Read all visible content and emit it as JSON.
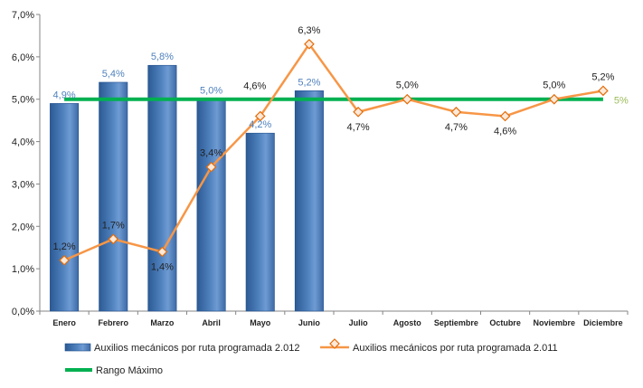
{
  "chart_data": {
    "type": "bar",
    "categories": [
      "Enero",
      "Febrero",
      "Marzo",
      "Abril",
      "Mayo",
      "Junio",
      "Julio",
      "Agosto",
      "Septiembre",
      "Octubre",
      "Noviembre",
      "Diciembre"
    ],
    "y_ticks": [
      "0,0%",
      "1,0%",
      "2,0%",
      "3,0%",
      "4,0%",
      "5,0%",
      "6,0%",
      "7,0%"
    ],
    "ylim": [
      0,
      7
    ],
    "series": [
      {
        "name": "Auxilios mecánicos por ruta programada 2.012",
        "kind": "bar",
        "color": "#4f81bd",
        "values": [
          4.9,
          5.4,
          5.8,
          5.0,
          4.2,
          5.2,
          null,
          null,
          null,
          null,
          null,
          null
        ],
        "labels": [
          "4,9%",
          "5,4%",
          "5,8%",
          "5,0%",
          "4,2%",
          "5,2%",
          "",
          "",
          "",
          "",
          "",
          ""
        ]
      },
      {
        "name": "Auxilios mecánicos por ruta programada 2.011",
        "kind": "line",
        "color": "#f79646",
        "values": [
          1.2,
          1.7,
          1.4,
          3.4,
          4.6,
          6.3,
          4.7,
          5.0,
          4.7,
          4.6,
          5.0,
          5.2
        ],
        "labels": [
          "1,2%",
          "1,7%",
          "1,4%",
          "3,4%",
          "4,6%",
          "6,3%",
          "4,7%",
          "5,0%",
          "4,7%",
          "4,6%",
          "5,0%",
          "5,2%"
        ]
      },
      {
        "name": "Rango Máximo",
        "kind": "line",
        "color": "#00b050",
        "values": [
          5,
          5,
          5,
          5,
          5,
          5,
          5,
          5,
          5,
          5,
          5,
          5
        ],
        "end_label": "5%"
      }
    ],
    "grid": false,
    "legend_position": "bottom-left"
  }
}
